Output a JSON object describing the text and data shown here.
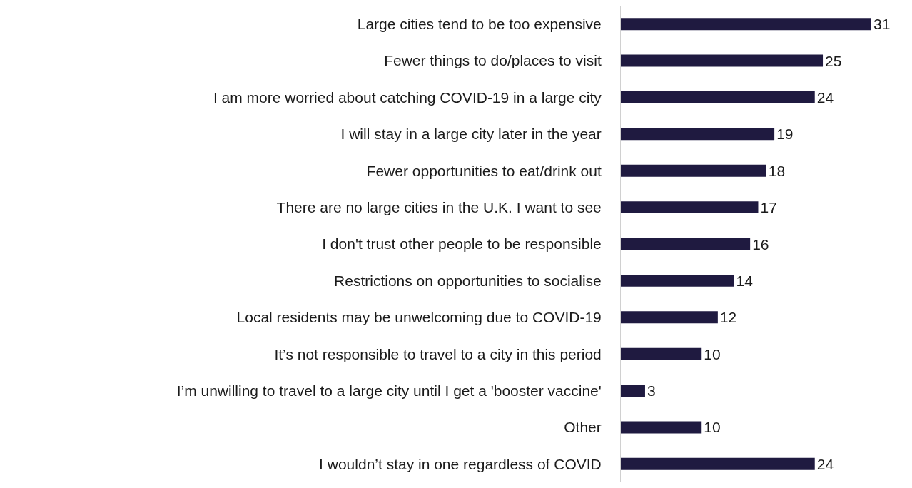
{
  "chart_data": {
    "type": "bar",
    "orientation": "horizontal",
    "data_labels": true,
    "legend": false,
    "categories": [
      "Large cities tend to be too expensive",
      "Fewer things to do/places to visit",
      "I am more worried about catching COVID-19 in a large city",
      "I will stay in a large city later in the year",
      "Fewer opportunities to eat/drink out",
      "There are no large cities in the U.K. I want to see",
      "I don't trust other people to be responsible",
      "Restrictions on opportunities to socialise",
      "Local residents may be unwelcoming due to COVID-19",
      "It’s not responsible to travel to a city in this period",
      "I’m unwilling to travel to a large city until I get a 'booster vaccine'",
      "Other",
      "I wouldn’t stay in one regardless of COVID"
    ],
    "values": [
      31,
      25,
      24,
      19,
      18,
      17,
      16,
      14,
      12,
      10,
      3,
      10,
      24
    ],
    "color": "#1f1a40"
  }
}
